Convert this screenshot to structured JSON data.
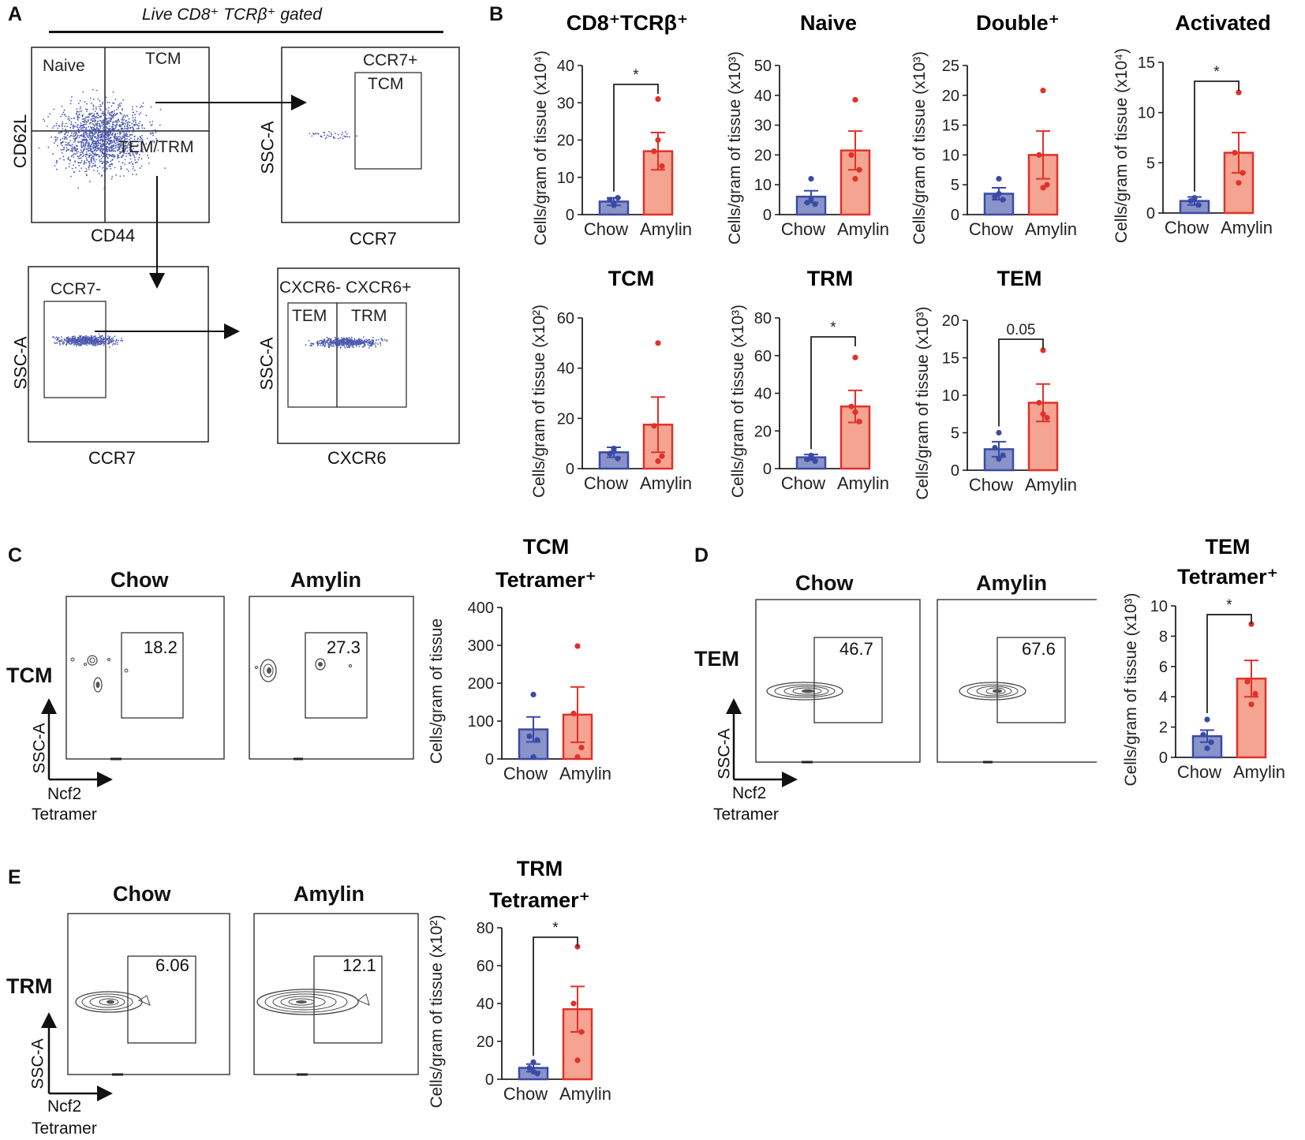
{
  "colors": {
    "chow_fill": "#8993c8",
    "chow_edge": "#3a4aa6",
    "chow_dot": "#3a4aa6",
    "amylin_fill": "#f4a491",
    "amylin_edge": "#e0312a",
    "amylin_dot": "#e0312a",
    "flow_dot": "#4d5ab0"
  },
  "panels": {
    "A": {
      "letter": "A",
      "header": "Live CD8⁺ TCRβ⁺ gated",
      "plot1": {
        "x_axis": "CD44",
        "y_axis": "CD62L",
        "q_naive": "Naive",
        "q_tcm": "TCM",
        "q_temtrm": "TEM/TRM"
      },
      "plot2": {
        "x_axis": "CCR7",
        "y_axis": "SSC-A",
        "gate_top": "CCR7+",
        "gate_name": "TCM"
      },
      "plot3": {
        "x_axis": "CCR7",
        "y_axis": "SSC-A",
        "gate_name": "CCR7-"
      },
      "plot4": {
        "x_axis": "CXCR6",
        "y_axis": "SSC-A",
        "header": "CXCR6- CXCR6+",
        "gate_left": "TEM",
        "gate_right": "TRM"
      }
    },
    "B": {
      "letter": "B"
    },
    "C": {
      "letter": "C",
      "row_label": "TCM",
      "chow_title": "Chow",
      "amylin_title": "Amylin",
      "chow_pct": "18.2",
      "amylin_pct": "27.3",
      "y_axis": "SSC-A",
      "x_axis_1": "Ncf2",
      "x_axis_2": "Tetramer"
    },
    "D": {
      "letter": "D",
      "row_label": "TEM",
      "chow_title": "Chow",
      "amylin_title": "Amylin",
      "chow_pct": "46.7",
      "amylin_pct": "67.6",
      "y_axis": "SSC-A",
      "x_axis_1": "Ncf2",
      "x_axis_2": "Tetramer"
    },
    "E": {
      "letter": "E",
      "row_label": "TRM",
      "chow_title": "Chow",
      "amylin_title": "Amylin",
      "chow_pct": "6.06",
      "amylin_pct": "12.1",
      "y_axis": "SSC-A",
      "x_axis_1": "Ncf2",
      "x_axis_2": "Tetramer"
    }
  },
  "chart_data": [
    {
      "id": "cd8",
      "type": "bar",
      "title": "CD8⁺TCRβ⁺",
      "ylabel": "Cells/gram of tissue (x10⁴)",
      "categories": [
        "Chow",
        "Amylin"
      ],
      "ylim": [
        0,
        40
      ],
      "yticks": [
        0,
        10,
        20,
        30,
        40
      ],
      "values": [
        3.5,
        17
      ],
      "sem": [
        1,
        5
      ],
      "points": [
        [
          2.5,
          4,
          4.5,
          3.0
        ],
        [
          31,
          17,
          13,
          20
        ]
      ],
      "significance": "*"
    },
    {
      "id": "naive",
      "type": "bar",
      "title": "Naive",
      "ylabel": "Cells/gram of tissue (x10³)",
      "categories": [
        "Chow",
        "Amylin"
      ],
      "ylim": [
        0,
        50
      ],
      "yticks": [
        0,
        10,
        20,
        30,
        40,
        50
      ],
      "values": [
        6,
        21.5
      ],
      "sem": [
        2,
        6.5
      ],
      "points": [
        [
          12,
          4,
          3.5,
          5
        ],
        [
          38.5,
          20,
          15,
          12
        ]
      ],
      "significance": ""
    },
    {
      "id": "double",
      "type": "bar",
      "title": "Double⁺",
      "ylabel": "Cells/gram of tissue (x10³)",
      "categories": [
        "Chow",
        "Amylin"
      ],
      "ylim": [
        0,
        25
      ],
      "yticks": [
        0,
        5,
        10,
        15,
        20,
        25
      ],
      "values": [
        3.5,
        10
      ],
      "sem": [
        1,
        4
      ],
      "points": [
        [
          6,
          3,
          2.5,
          3.5
        ],
        [
          20.8,
          10,
          5,
          4.5
        ]
      ],
      "significance": ""
    },
    {
      "id": "activated",
      "type": "bar",
      "title": "Activated",
      "ylabel": "Cells/gram of tissue (x10⁴)",
      "categories": [
        "Chow",
        "Amylin"
      ],
      "ylim": [
        0,
        15
      ],
      "yticks": [
        0,
        5,
        10,
        15
      ],
      "values": [
        1.2,
        6
      ],
      "sem": [
        0.4,
        2
      ],
      "points": [
        [
          1.5,
          1.2,
          0.8,
          1.5
        ],
        [
          12,
          6,
          4,
          3
        ]
      ],
      "significance": "*"
    },
    {
      "id": "tcm",
      "type": "bar",
      "title": "TCM",
      "ylabel": "Cells/gram of tissue (x10²)",
      "categories": [
        "Chow",
        "Amylin"
      ],
      "ylim": [
        0,
        60
      ],
      "yticks": [
        0,
        20,
        40,
        60
      ],
      "values": [
        6.5,
        17.5
      ],
      "sem": [
        2,
        11
      ],
      "points": [
        [
          8,
          6,
          4,
          7
        ],
        [
          50,
          17,
          5,
          3
        ]
      ],
      "significance": ""
    },
    {
      "id": "trm",
      "type": "bar",
      "title": "TRM",
      "ylabel": "Cells/gram of tissue (x10³)",
      "categories": [
        "Chow",
        "Amylin"
      ],
      "ylim": [
        0,
        80
      ],
      "yticks": [
        0,
        20,
        40,
        60,
        80
      ],
      "values": [
        6,
        33
      ],
      "sem": [
        1.5,
        8.5
      ],
      "points": [
        [
          7,
          5,
          4,
          6
        ],
        [
          59,
          33,
          25,
          30
        ]
      ],
      "significance": "*"
    },
    {
      "id": "tem",
      "type": "bar",
      "title": "TEM",
      "ylabel": "Cells/gram of tissue (x10³)",
      "categories": [
        "Chow",
        "Amylin"
      ],
      "ylim": [
        0,
        20
      ],
      "yticks": [
        0,
        5,
        10,
        15,
        20
      ],
      "values": [
        2.8,
        9
      ],
      "sem": [
        1,
        2.5
      ],
      "points": [
        [
          5,
          3,
          2,
          1.5
        ],
        [
          16,
          9,
          7,
          7.5
        ]
      ],
      "significance": "0.05"
    },
    {
      "id": "tcm_tet",
      "type": "bar",
      "title_line1": "TCM",
      "title_line2": "Tetramer⁺",
      "ylabel": "Cells/gram of tissue",
      "categories": [
        "Chow",
        "Amylin"
      ],
      "ylim": [
        0,
        400
      ],
      "yticks": [
        0,
        100,
        200,
        300,
        400
      ],
      "values": [
        78,
        117
      ],
      "sem": [
        33,
        73
      ],
      "points": [
        [
          170,
          60,
          50,
          5
        ],
        [
          298,
          120,
          30,
          5
        ]
      ],
      "significance": ""
    },
    {
      "id": "tem_tet",
      "type": "bar",
      "title_line1": "TEM",
      "title_line2": "Tetramer⁺",
      "ylabel": "Cells/gram of tissue (x10³)",
      "categories": [
        "Chow",
        "Amylin"
      ],
      "ylim": [
        0,
        10
      ],
      "yticks": [
        0,
        2,
        4,
        6,
        8,
        10
      ],
      "values": [
        1.4,
        5.2
      ],
      "sem": [
        0.4,
        1.2
      ],
      "points": [
        [
          2.5,
          1.5,
          1,
          0.6
        ],
        [
          8.8,
          5,
          4.2,
          3.5
        ]
      ],
      "significance": "*"
    },
    {
      "id": "trm_tet",
      "type": "bar",
      "title_line1": "TRM",
      "title_line2": "Tetramer⁺",
      "ylabel": "Cells/gram of tissue (x10²)",
      "categories": [
        "Chow",
        "Amylin"
      ],
      "ylim": [
        0,
        80
      ],
      "yticks": [
        0,
        20,
        40,
        60,
        80
      ],
      "values": [
        6,
        37
      ],
      "sem": [
        2,
        12
      ],
      "points": [
        [
          9,
          6,
          3,
          4
        ],
        [
          70,
          40,
          25,
          10
        ]
      ],
      "significance": "*"
    }
  ]
}
